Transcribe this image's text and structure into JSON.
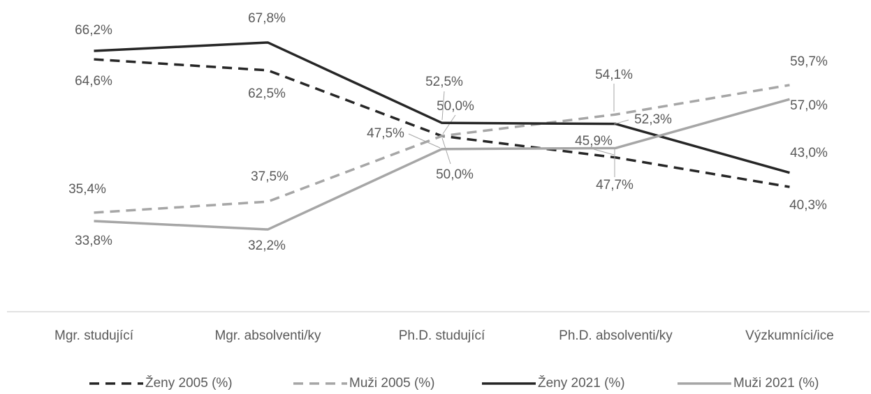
{
  "chart_data": {
    "type": "line",
    "categories": [
      "Mgr. studující",
      "Mgr. absolventi/ky",
      "Ph.D. studující",
      "Ph.D. absolventi/ky",
      "Výzkumníci/ice"
    ],
    "series": [
      {
        "name": "Ženy 2005 (%)",
        "color": "#262626",
        "dash": true,
        "values": [
          64.6,
          62.5,
          50.0,
          45.9,
          40.3
        ],
        "value_labels": [
          "64,6%",
          "62,5%",
          "50,0%",
          "45,9%",
          "40,3%"
        ]
      },
      {
        "name": "Muži 2005 (%)",
        "color": "#a6a6a6",
        "dash": true,
        "values": [
          35.4,
          37.5,
          50.0,
          54.1,
          59.7
        ],
        "value_labels": [
          "35,4%",
          "37,5%",
          "50,0%",
          "54,1%",
          "59,7%"
        ]
      },
      {
        "name": "Ženy 2021 (%)",
        "color": "#262626",
        "dash": false,
        "values": [
          66.2,
          67.8,
          52.5,
          52.3,
          43.0
        ],
        "value_labels": [
          "66,2%",
          "67,8%",
          "52,5%",
          "52,3%",
          "43,0%"
        ]
      },
      {
        "name": "Muži 2021 (%)",
        "color": "#a6a6a6",
        "dash": false,
        "values": [
          33.8,
          32.2,
          47.5,
          47.7,
          57.0
        ],
        "value_labels": [
          "33,8%",
          "32,2%",
          "47,5%",
          "47,7%",
          "57,0%"
        ]
      }
    ],
    "ylim": [
      20,
      70
    ],
    "legend": "bottom"
  }
}
